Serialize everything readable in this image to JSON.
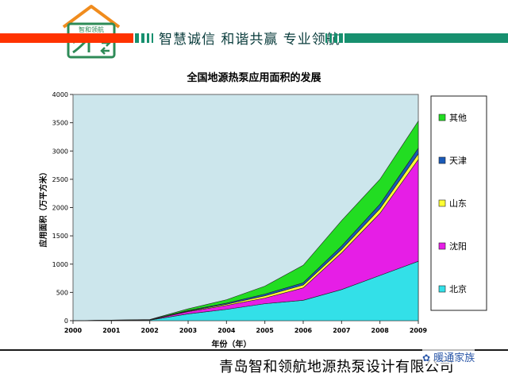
{
  "header": {
    "slogan": "智慧诚信 和谐共赢 专业领航",
    "logo_text": "智和领航",
    "colors": {
      "red_bar": "#ff3300",
      "green_bar": "#17906f",
      "logo_green": "#2e8b57",
      "logo_orange": "#f08c1e"
    }
  },
  "footer": {
    "company": "青岛智和领航地源热泵设计有限公司",
    "watermark": "暖通家族"
  },
  "chart_data": {
    "type": "area",
    "stacked": true,
    "title": "全国地源热泵应用面积的发展",
    "xlabel": "年份（年）",
    "ylabel": "应用面积（万平方米）",
    "x": [
      "2000",
      "2001",
      "2002",
      "2003",
      "2004",
      "2005",
      "2006",
      "2007",
      "2008",
      "2009"
    ],
    "ylim": [
      0,
      4000
    ],
    "yticks": [
      0,
      500,
      1000,
      1500,
      2000,
      2500,
      3000,
      3500,
      4000
    ],
    "grid": false,
    "legend_position": "right",
    "plot_background": "#cce6ec",
    "series": [
      {
        "name": "北京",
        "color": "#33e0e8",
        "values": [
          0,
          5,
          10,
          120,
          200,
          300,
          360,
          550,
          800,
          1050
        ]
      },
      {
        "name": "沈阳",
        "color": "#e61ee6",
        "values": [
          0,
          2,
          3,
          40,
          70,
          100,
          220,
          650,
          1100,
          1800
        ]
      },
      {
        "name": "山东",
        "color": "#ffff33",
        "values": [
          0,
          1,
          2,
          10,
          20,
          40,
          50,
          60,
          80,
          100
        ]
      },
      {
        "name": "天津",
        "color": "#1a5ab8",
        "values": [
          0,
          1,
          2,
          10,
          20,
          30,
          40,
          60,
          80,
          100
        ]
      },
      {
        "name": "其他",
        "color": "#22dd22",
        "values": [
          0,
          1,
          3,
          30,
          60,
          140,
          310,
          450,
          440,
          480
        ]
      }
    ],
    "legend_order": [
      "其他",
      "天津",
      "山东",
      "沈阳",
      "北京"
    ]
  }
}
